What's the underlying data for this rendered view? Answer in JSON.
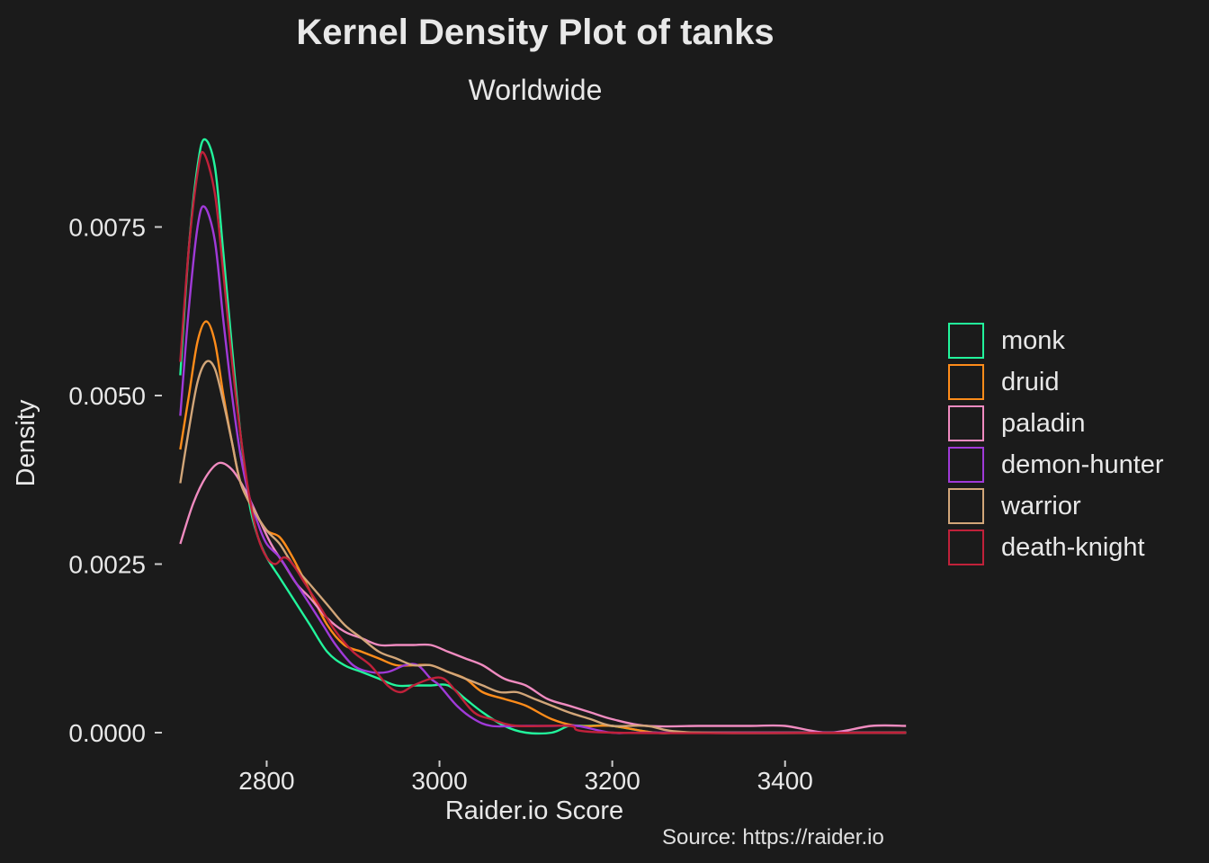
{
  "chart_data": {
    "type": "line",
    "title": "Kernel Density Plot of tanks",
    "subtitle": "Worldwide",
    "caption": "Source: https://raider.io",
    "xlabel": "Raider.io Score",
    "ylabel": "Density",
    "xlim": [
      2685,
      3545
    ],
    "ylim": [
      -0.0004,
      0.009
    ],
    "x_ticks": [
      2800,
      3000,
      3200,
      3400
    ],
    "x_tick_labels": [
      "2800",
      "3000",
      "3200",
      "3400"
    ],
    "y_ticks": [
      0,
      0.0025,
      0.005,
      0.0075
    ],
    "y_tick_labels": [
      "0.0000",
      "0.0025",
      "0.0050",
      "0.0075"
    ],
    "grid": false,
    "legend_position": "right",
    "series": [
      {
        "name": "monk",
        "color": "#22f59c",
        "points": [
          [
            2700,
            0.0053
          ],
          [
            2710,
            0.0072
          ],
          [
            2720,
            0.0084
          ],
          [
            2728,
            0.0088
          ],
          [
            2740,
            0.0084
          ],
          [
            2750,
            0.0071
          ],
          [
            2760,
            0.0057
          ],
          [
            2770,
            0.0044
          ],
          [
            2780,
            0.0034
          ],
          [
            2790,
            0.0029
          ],
          [
            2800,
            0.0026
          ],
          [
            2815,
            0.0023
          ],
          [
            2830,
            0.002
          ],
          [
            2850,
            0.0016
          ],
          [
            2870,
            0.0012
          ],
          [
            2890,
            0.001
          ],
          [
            2910,
            0.0009
          ],
          [
            2930,
            0.0008
          ],
          [
            2950,
            0.0007
          ],
          [
            2970,
            0.0007
          ],
          [
            2990,
            0.0007
          ],
          [
            3010,
            0.0007
          ],
          [
            3030,
            0.0005
          ],
          [
            3050,
            0.0003
          ],
          [
            3075,
            0.0001
          ],
          [
            3100,
            0.0
          ],
          [
            3130,
            0.0
          ],
          [
            3150,
            0.0001
          ],
          [
            3170,
            0.0001
          ],
          [
            3200,
            0.0001
          ],
          [
            3250,
            0.0
          ],
          [
            3300,
            0.0
          ],
          [
            3540,
            0.0
          ]
        ]
      },
      {
        "name": "druid",
        "color": "#ff8c1a",
        "points": [
          [
            2700,
            0.0042
          ],
          [
            2710,
            0.005
          ],
          [
            2720,
            0.0058
          ],
          [
            2730,
            0.0061
          ],
          [
            2740,
            0.0058
          ],
          [
            2750,
            0.005
          ],
          [
            2760,
            0.0043
          ],
          [
            2770,
            0.0037
          ],
          [
            2785,
            0.0033
          ],
          [
            2800,
            0.003
          ],
          [
            2815,
            0.0029
          ],
          [
            2830,
            0.0026
          ],
          [
            2850,
            0.0021
          ],
          [
            2870,
            0.0016
          ],
          [
            2890,
            0.0013
          ],
          [
            2910,
            0.0012
          ],
          [
            2930,
            0.0011
          ],
          [
            2950,
            0.001
          ],
          [
            2970,
            0.001
          ],
          [
            2990,
            0.001
          ],
          [
            3010,
            0.0009
          ],
          [
            3030,
            0.0008
          ],
          [
            3050,
            0.0006
          ],
          [
            3075,
            0.0005
          ],
          [
            3100,
            0.0004
          ],
          [
            3130,
            0.0002
          ],
          [
            3160,
            0.0001
          ],
          [
            3200,
            0.0001
          ],
          [
            3250,
            0.0
          ],
          [
            3300,
            0.0
          ],
          [
            3540,
            0.0
          ]
        ]
      },
      {
        "name": "paladin",
        "color": "#f08bc0",
        "points": [
          [
            2700,
            0.0028
          ],
          [
            2715,
            0.0034
          ],
          [
            2730,
            0.0038
          ],
          [
            2745,
            0.004
          ],
          [
            2760,
            0.0039
          ],
          [
            2775,
            0.0036
          ],
          [
            2790,
            0.0032
          ],
          [
            2805,
            0.0028
          ],
          [
            2820,
            0.0025
          ],
          [
            2835,
            0.0022
          ],
          [
            2850,
            0.002
          ],
          [
            2870,
            0.0017
          ],
          [
            2890,
            0.0015
          ],
          [
            2910,
            0.0014
          ],
          [
            2930,
            0.0013
          ],
          [
            2950,
            0.0013
          ],
          [
            2970,
            0.0013
          ],
          [
            2990,
            0.0013
          ],
          [
            3010,
            0.0012
          ],
          [
            3030,
            0.0011
          ],
          [
            3050,
            0.001
          ],
          [
            3075,
            0.0008
          ],
          [
            3100,
            0.0007
          ],
          [
            3125,
            0.0005
          ],
          [
            3150,
            0.0004
          ],
          [
            3175,
            0.0003
          ],
          [
            3200,
            0.0002
          ],
          [
            3240,
            0.0001
          ],
          [
            3300,
            0.0001
          ],
          [
            3360,
            0.0001
          ],
          [
            3400,
            0.0001
          ],
          [
            3450,
            0.0
          ],
          [
            3500,
            0.0001
          ],
          [
            3540,
            0.0001
          ]
        ]
      },
      {
        "name": "demon-hunter",
        "color": "#a03ad8",
        "points": [
          [
            2700,
            0.0047
          ],
          [
            2710,
            0.0063
          ],
          [
            2720,
            0.0075
          ],
          [
            2728,
            0.0078
          ],
          [
            2740,
            0.0073
          ],
          [
            2750,
            0.0061
          ],
          [
            2760,
            0.005
          ],
          [
            2770,
            0.0041
          ],
          [
            2780,
            0.0035
          ],
          [
            2790,
            0.0031
          ],
          [
            2800,
            0.0028
          ],
          [
            2815,
            0.0026
          ],
          [
            2830,
            0.0023
          ],
          [
            2850,
            0.0019
          ],
          [
            2865,
            0.0016
          ],
          [
            2880,
            0.0013
          ],
          [
            2900,
            0.001
          ],
          [
            2920,
            0.0009
          ],
          [
            2940,
            0.0009
          ],
          [
            2960,
            0.001
          ],
          [
            2975,
            0.001
          ],
          [
            2990,
            0.0008
          ],
          [
            3000,
            0.0007
          ],
          [
            3020,
            0.0004
          ],
          [
            3040,
            0.0002
          ],
          [
            3060,
            0.0001
          ],
          [
            3090,
            0.0001
          ],
          [
            3130,
            0.0001
          ],
          [
            3160,
            0.0001
          ],
          [
            3200,
            0.0
          ],
          [
            3250,
            0.0
          ],
          [
            3540,
            0.0
          ]
        ]
      },
      {
        "name": "warrior",
        "color": "#d2a679",
        "points": [
          [
            2700,
            0.0037
          ],
          [
            2710,
            0.0045
          ],
          [
            2720,
            0.0052
          ],
          [
            2730,
            0.0055
          ],
          [
            2740,
            0.0054
          ],
          [
            2750,
            0.0049
          ],
          [
            2760,
            0.0043
          ],
          [
            2770,
            0.0037
          ],
          [
            2785,
            0.0033
          ],
          [
            2800,
            0.003
          ],
          [
            2815,
            0.0028
          ],
          [
            2830,
            0.0025
          ],
          [
            2850,
            0.0022
          ],
          [
            2870,
            0.0019
          ],
          [
            2890,
            0.0016
          ],
          [
            2910,
            0.0014
          ],
          [
            2930,
            0.0012
          ],
          [
            2950,
            0.0011
          ],
          [
            2970,
            0.001
          ],
          [
            2990,
            0.001
          ],
          [
            3010,
            0.0009
          ],
          [
            3030,
            0.0008
          ],
          [
            3050,
            0.0007
          ],
          [
            3070,
            0.0006
          ],
          [
            3090,
            0.0006
          ],
          [
            3110,
            0.0005
          ],
          [
            3130,
            0.0004
          ],
          [
            3150,
            0.0003
          ],
          [
            3175,
            0.0002
          ],
          [
            3200,
            0.0001
          ],
          [
            3240,
            0.0001
          ],
          [
            3300,
            0.0
          ],
          [
            3540,
            0.0
          ]
        ]
      },
      {
        "name": "death-knight",
        "color": "#c0213a",
        "points": [
          [
            2700,
            0.0055
          ],
          [
            2710,
            0.0072
          ],
          [
            2720,
            0.0083
          ],
          [
            2727,
            0.0086
          ],
          [
            2740,
            0.008
          ],
          [
            2750,
            0.0068
          ],
          [
            2760,
            0.0055
          ],
          [
            2770,
            0.0044
          ],
          [
            2780,
            0.0035
          ],
          [
            2790,
            0.0029
          ],
          [
            2800,
            0.0026
          ],
          [
            2810,
            0.0025
          ],
          [
            2820,
            0.0026
          ],
          [
            2830,
            0.0025
          ],
          [
            2845,
            0.0022
          ],
          [
            2860,
            0.0019
          ],
          [
            2880,
            0.0015
          ],
          [
            2900,
            0.0012
          ],
          [
            2920,
            0.001
          ],
          [
            2940,
            0.0007
          ],
          [
            2955,
            0.0006
          ],
          [
            2970,
            0.0007
          ],
          [
            2990,
            0.0008
          ],
          [
            3005,
            0.0008
          ],
          [
            3020,
            0.0006
          ],
          [
            3040,
            0.0003
          ],
          [
            3060,
            0.0002
          ],
          [
            3090,
            0.0001
          ],
          [
            3150,
            0.0001
          ],
          [
            3200,
            0.0
          ],
          [
            3540,
            0.0
          ]
        ]
      }
    ]
  }
}
